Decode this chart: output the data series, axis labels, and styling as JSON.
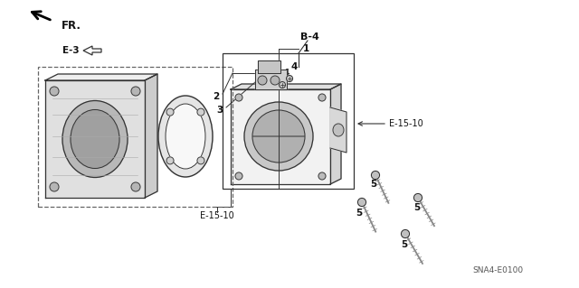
{
  "background_color": "#ffffff",
  "part_numbers": {
    "B4_label": "B-4",
    "E3_label": "E-3",
    "E1510_label1": "E-15-10",
    "E1510_label2": "E-15-10",
    "SNA_label": "SNA4-E0100",
    "FR_label": "FR.",
    "part1": "1",
    "part2": "2",
    "part3": "3",
    "part4a": "4",
    "part4b": "4",
    "part5a": "5",
    "part5b": "5",
    "part5c": "5",
    "part5d": "5"
  },
  "colors": {
    "line": "#333333",
    "text": "#111111",
    "text_dim": "#555555",
    "background": "#ffffff",
    "dashed": "#666666",
    "fill_light": "#eeeeee",
    "fill_mid": "#d8d8d8",
    "fill_dark": "#b8b8b8"
  }
}
